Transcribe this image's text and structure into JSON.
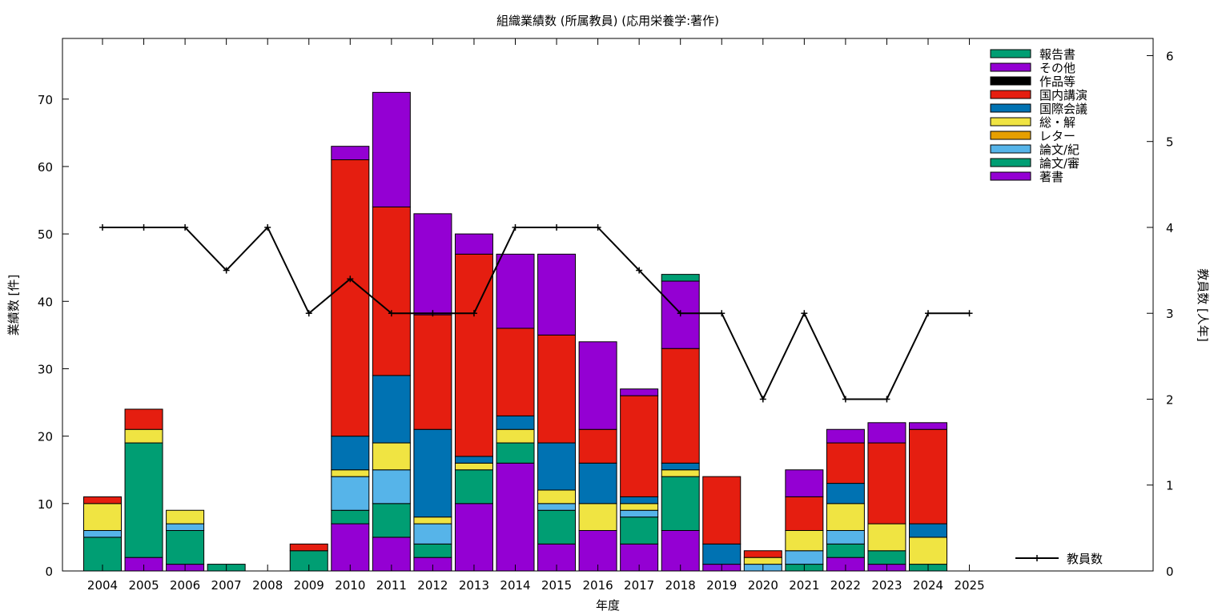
{
  "chart_data": {
    "type": "bar",
    "stacked": true,
    "title": "組織業績数 (所属教員) (応用栄養学:著作)",
    "xlabel": "年度",
    "ylabel": "業績数 [件]",
    "y2label": "教員数 [人年]",
    "categories": [
      "2004",
      "2005",
      "2006",
      "2007",
      "2008",
      "2009",
      "2010",
      "2011",
      "2012",
      "2013",
      "2014",
      "2015",
      "2016",
      "2017",
      "2018",
      "2019",
      "2020",
      "2021",
      "2022",
      "2023",
      "2024",
      "2025"
    ],
    "ylim": [
      0,
      79
    ],
    "y2lim": [
      0,
      6.2
    ],
    "yticks": [
      0,
      10,
      20,
      30,
      40,
      50,
      60,
      70
    ],
    "y2ticks": [
      0,
      1,
      2,
      3,
      4,
      5,
      6
    ],
    "grid": false,
    "legend_position": "top-right",
    "series": [
      {
        "name": "著書",
        "color": "#9400d3",
        "values": [
          0,
          2,
          1,
          0,
          0,
          0,
          7,
          5,
          2,
          10,
          16,
          4,
          6,
          4,
          6,
          1,
          0,
          0,
          2,
          1,
          0,
          0
        ]
      },
      {
        "name": "論文/審",
        "color": "#009e73",
        "values": [
          5,
          17,
          5,
          1,
          0,
          3,
          2,
          5,
          2,
          5,
          3,
          5,
          0,
          4,
          8,
          0,
          0,
          1,
          2,
          2,
          1,
          0
        ]
      },
      {
        "name": "論文/紀",
        "color": "#56b4e9",
        "values": [
          1,
          0,
          1,
          0,
          0,
          0,
          5,
          5,
          3,
          0,
          0,
          1,
          0,
          1,
          0,
          0,
          1,
          2,
          2,
          0,
          0,
          0
        ]
      },
      {
        "name": "レター",
        "color": "#e69f00",
        "values": [
          0,
          0,
          0,
          0,
          0,
          0,
          0,
          0,
          0,
          0,
          0,
          0,
          0,
          0,
          0,
          0,
          0,
          0,
          0,
          0,
          0,
          0
        ]
      },
      {
        "name": "総・解",
        "color": "#f0e442",
        "values": [
          4,
          2,
          2,
          0,
          0,
          0,
          1,
          4,
          1,
          1,
          2,
          2,
          4,
          1,
          1,
          0,
          1,
          3,
          4,
          4,
          4,
          0
        ]
      },
      {
        "name": "国際会議",
        "color": "#0072b2",
        "values": [
          0,
          0,
          0,
          0,
          0,
          0,
          5,
          10,
          13,
          1,
          2,
          7,
          6,
          1,
          1,
          3,
          0,
          0,
          3,
          0,
          2,
          0
        ]
      },
      {
        "name": "国内講演",
        "color": "#e51e10",
        "values": [
          1,
          3,
          0,
          0,
          0,
          1,
          41,
          25,
          17,
          30,
          13,
          16,
          5,
          15,
          17,
          10,
          1,
          5,
          6,
          12,
          14,
          0
        ]
      },
      {
        "name": "作品等",
        "color": "#000000",
        "values": [
          0,
          0,
          0,
          0,
          0,
          0,
          0,
          0,
          0,
          0,
          0,
          0,
          0,
          0,
          0,
          0,
          0,
          0,
          0,
          0,
          0,
          0
        ]
      },
      {
        "name": "その他",
        "color": "#9400d3",
        "values": [
          0,
          0,
          0,
          0,
          0,
          0,
          2,
          17,
          15,
          3,
          11,
          12,
          13,
          1,
          10,
          0,
          0,
          4,
          2,
          3,
          1,
          0
        ]
      },
      {
        "name": "報告書",
        "color": "#009e73",
        "values": [
          0,
          0,
          0,
          0,
          0,
          0,
          0,
          0,
          0,
          0,
          0,
          0,
          0,
          0,
          1,
          0,
          0,
          0,
          0,
          0,
          0,
          0
        ]
      }
    ],
    "line_series": {
      "name": "教員数",
      "color": "#000000",
      "axis": "y2",
      "values": [
        4,
        4,
        4,
        3.5,
        4,
        3,
        3.4,
        3,
        3,
        3,
        4,
        4,
        4,
        3.5,
        3,
        3,
        2,
        3,
        2,
        2,
        3,
        3
      ]
    }
  }
}
